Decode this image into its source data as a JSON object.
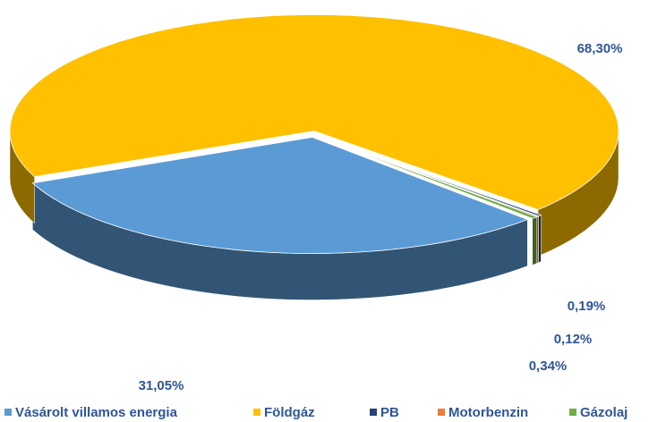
{
  "chart_data": {
    "type": "pie",
    "categories": [
      "Vásárolt villamos energia",
      "Földgáz",
      "PB",
      "Motorbenzin",
      "Gázolaj"
    ],
    "values": [
      31.05,
      68.3,
      0.19,
      0.12,
      0.34
    ],
    "value_labels": [
      "31,05%",
      "68,30%",
      "0,19%",
      "0,12%",
      "0,34%"
    ],
    "colors": [
      "#5b9bd5",
      "#ffc000",
      "#264478",
      "#ed7d31",
      "#70ad47"
    ],
    "legend": "bottom"
  }
}
